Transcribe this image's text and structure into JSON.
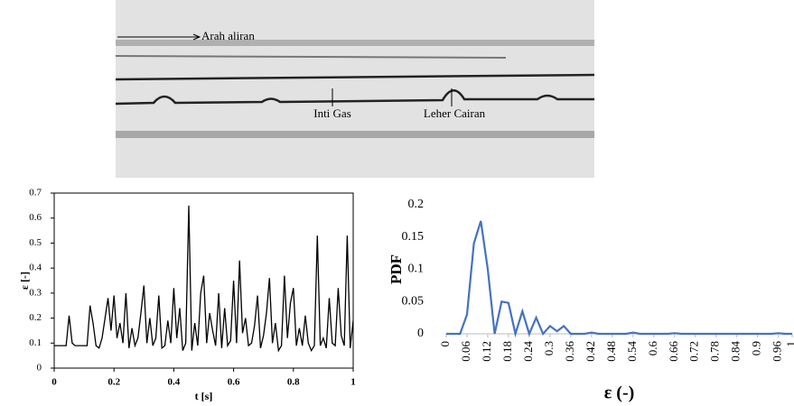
{
  "photo": {
    "annotations": [
      "Arah aliran",
      "Inti Gas",
      "Leher Cairan"
    ]
  },
  "chart_data": [
    {
      "type": "line",
      "x_label": "t [s]",
      "y_label": "ε [-]",
      "color": "#000000",
      "x": [
        0,
        0.01,
        0.02,
        0.03,
        0.04,
        0.05,
        0.06,
        0.07,
        0.08,
        0.09,
        0.1,
        0.11,
        0.12,
        0.13,
        0.14,
        0.15,
        0.16,
        0.17,
        0.18,
        0.19,
        0.2,
        0.21,
        0.22,
        0.23,
        0.24,
        0.25,
        0.26,
        0.27,
        0.28,
        0.29,
        0.3,
        0.31,
        0.32,
        0.33,
        0.34,
        0.35,
        0.36,
        0.37,
        0.38,
        0.39,
        0.4,
        0.41,
        0.42,
        0.43,
        0.44,
        0.45,
        0.46,
        0.47,
        0.48,
        0.49,
        0.5,
        0.51,
        0.52,
        0.53,
        0.54,
        0.55,
        0.56,
        0.57,
        0.58,
        0.59,
        0.6,
        0.61,
        0.62,
        0.63,
        0.64,
        0.65,
        0.66,
        0.67,
        0.68,
        0.69,
        0.7,
        0.71,
        0.72,
        0.73,
        0.74,
        0.75,
        0.76,
        0.77,
        0.78,
        0.79,
        0.8,
        0.81,
        0.82,
        0.83,
        0.84,
        0.85,
        0.86,
        0.87,
        0.88,
        0.89,
        0.9,
        0.91,
        0.92,
        0.93,
        0.94,
        0.95,
        0.96,
        0.97,
        0.98,
        0.99,
        1
      ],
      "values": [
        0.09,
        0.09,
        0.09,
        0.09,
        0.09,
        0.21,
        0.1,
        0.09,
        0.09,
        0.09,
        0.09,
        0.09,
        0.25,
        0.18,
        0.09,
        0.08,
        0.12,
        0.2,
        0.28,
        0.15,
        0.29,
        0.12,
        0.18,
        0.1,
        0.3,
        0.08,
        0.16,
        0.09,
        0.12,
        0.22,
        0.33,
        0.1,
        0.2,
        0.09,
        0.12,
        0.29,
        0.08,
        0.09,
        0.19,
        0.1,
        0.32,
        0.12,
        0.24,
        0.07,
        0.1,
        0.65,
        0.07,
        0.18,
        0.09,
        0.3,
        0.37,
        0.1,
        0.22,
        0.15,
        0.09,
        0.3,
        0.08,
        0.24,
        0.09,
        0.11,
        0.35,
        0.1,
        0.43,
        0.14,
        0.2,
        0.09,
        0.1,
        0.17,
        0.29,
        0.08,
        0.13,
        0.22,
        0.36,
        0.1,
        0.18,
        0.07,
        0.09,
        0.37,
        0.12,
        0.26,
        0.32,
        0.09,
        0.16,
        0.09,
        0.21,
        0.1,
        0.07,
        0.09,
        0.53,
        0.09,
        0.12,
        0.08,
        0.28,
        0.1,
        0.09,
        0.32,
        0.13,
        0.09,
        0.53,
        0.08,
        0.19
      ],
      "xlim": [
        0,
        1
      ],
      "xticks": [
        0,
        0.2,
        0.4,
        0.6,
        0.8,
        1
      ],
      "ylim": [
        0,
        0.7
      ],
      "yticks": [
        0,
        0.1,
        0.2,
        0.3,
        0.4,
        0.5,
        0.6,
        0.7
      ],
      "frame": true,
      "rotated_x_labels": false
    },
    {
      "type": "line",
      "x_label": "ε (-)",
      "y_label": "PDF",
      "color": "#4472c4",
      "x": [
        0,
        0.02,
        0.04,
        0.06,
        0.08,
        0.1,
        0.12,
        0.14,
        0.16,
        0.18,
        0.2,
        0.22,
        0.24,
        0.26,
        0.28,
        0.3,
        0.32,
        0.34,
        0.36,
        0.38,
        0.4,
        0.42,
        0.44,
        0.46,
        0.48,
        0.5,
        0.52,
        0.54,
        0.56,
        0.58,
        0.6,
        0.62,
        0.64,
        0.66,
        0.68,
        0.7,
        0.72,
        0.74,
        0.76,
        0.78,
        0.8,
        0.82,
        0.84,
        0.86,
        0.88,
        0.9,
        0.92,
        0.94,
        0.96,
        0.98,
        1
      ],
      "values": [
        0,
        0,
        0,
        0.03,
        0.14,
        0.175,
        0.1,
        0,
        0.05,
        0.048,
        0,
        0.035,
        0,
        0.025,
        0,
        0.012,
        0.004,
        0.012,
        0,
        0,
        0,
        0.002,
        0,
        0,
        0,
        0,
        0,
        0.002,
        0,
        0,
        0,
        0,
        0,
        0.001,
        0,
        0,
        0,
        0,
        0,
        0,
        0,
        0,
        0,
        0,
        0,
        0,
        0,
        0,
        0.001,
        0,
        0
      ],
      "xlim": [
        0,
        1
      ],
      "xticks": [
        0,
        0.06,
        0.12,
        0.18,
        0.24,
        0.3,
        0.36,
        0.42,
        0.48,
        0.54,
        0.6,
        0.66,
        0.72,
        0.78,
        0.84,
        0.9,
        0.96,
        1
      ],
      "ylim": [
        0,
        0.2
      ],
      "yticks": [
        0,
        0.05,
        0.1,
        0.15,
        0.2
      ],
      "frame": false,
      "rotated_x_labels": true
    }
  ]
}
